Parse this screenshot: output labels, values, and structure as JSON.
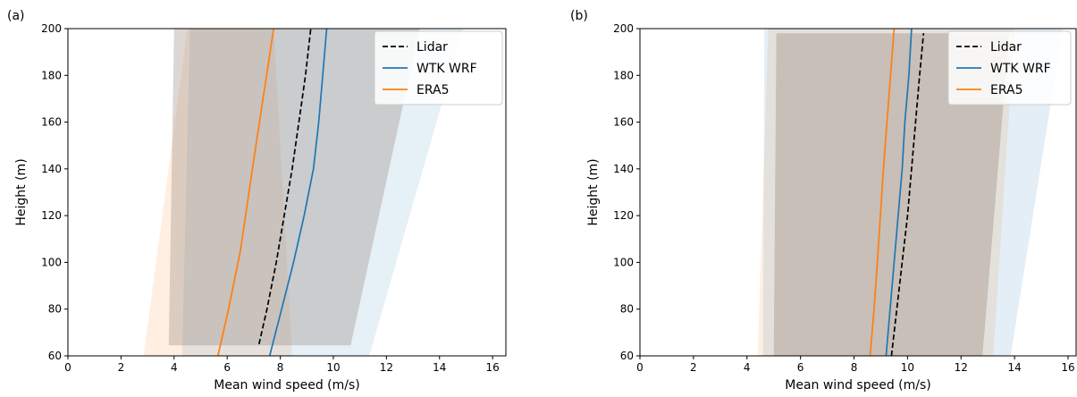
{
  "figure": {
    "panels": [
      {
        "label": "(a)",
        "legend": [
          {
            "text": "Lidar",
            "color": "#000000",
            "dash": true
          },
          {
            "text": "WTK WRF",
            "color": "#1f77b4",
            "dash": false
          },
          {
            "text": "ERA5",
            "color": "#ff7f0e",
            "dash": false
          }
        ]
      },
      {
        "label": "(b)",
        "legend": [
          {
            "text": "Lidar",
            "color": "#000000",
            "dash": true
          },
          {
            "text": "WTK WRF",
            "color": "#1f77b4",
            "dash": false
          },
          {
            "text": "ERA5",
            "color": "#ff7f0e",
            "dash": false
          }
        ]
      }
    ]
  },
  "chart_data": [
    {
      "type": "line",
      "panel": "(a)",
      "xlabel": "Mean wind speed (m/s)",
      "ylabel": "Height (m)",
      "xlim": [
        0,
        16.5
      ],
      "ylim": [
        60,
        200
      ],
      "xticks": [
        0,
        2,
        4,
        6,
        8,
        10,
        12,
        14,
        16
      ],
      "yticks": [
        60,
        80,
        100,
        120,
        140,
        160,
        180,
        200
      ],
      "legend_position": "top-right",
      "grid": false,
      "series": [
        {
          "name": "Lidar",
          "color": "#000000",
          "dashed": true,
          "points": [
            [
              7.2,
              65
            ],
            [
              7.5,
              80
            ],
            [
              7.85,
              100
            ],
            [
              8.15,
              120
            ],
            [
              8.45,
              140
            ],
            [
              8.7,
              160
            ],
            [
              8.95,
              180
            ],
            [
              9.15,
              200
            ]
          ]
        },
        {
          "name": "WTK WRF",
          "color": "#1f77b4",
          "dashed": false,
          "points": [
            [
              7.6,
              60
            ],
            [
              8.05,
              80
            ],
            [
              8.5,
              100
            ],
            [
              8.9,
              120
            ],
            [
              9.25,
              140
            ],
            [
              9.45,
              160
            ],
            [
              9.6,
              180
            ],
            [
              9.75,
              200
            ]
          ]
        },
        {
          "name": "ERA5",
          "color": "#ff7f0e",
          "dashed": false,
          "points": [
            [
              5.65,
              60
            ],
            [
              6.05,
              80
            ],
            [
              6.5,
              105
            ],
            [
              6.95,
              140
            ],
            [
              7.35,
              170
            ],
            [
              7.75,
              200
            ]
          ]
        }
      ],
      "bands": [
        {
          "color": "#ff7f0e",
          "opacity": 0.12,
          "polygon": [
            [
              2.85,
              60
            ],
            [
              4.5,
              200
            ],
            [
              7.75,
              200
            ],
            [
              8.45,
              60
            ]
          ]
        },
        {
          "color": "#1f77b4",
          "opacity": 0.11,
          "polygon": [
            [
              4.3,
              60
            ],
            [
              4.6,
              200
            ],
            [
              14.9,
              200
            ],
            [
              11.35,
              60
            ]
          ]
        },
        {
          "color": "#8c7b70",
          "opacity": 0.3,
          "polygon": [
            [
              3.8,
              64.5
            ],
            [
              4.0,
              200
            ],
            [
              13.25,
              200
            ],
            [
              10.65,
              64.5
            ]
          ]
        }
      ]
    },
    {
      "type": "line",
      "panel": "(b)",
      "xlabel": "Mean wind speed (m/s)",
      "ylabel": "Height (m)",
      "xlim": [
        0,
        16.3
      ],
      "ylim": [
        60,
        200
      ],
      "xticks": [
        0,
        2,
        4,
        6,
        8,
        10,
        12,
        14,
        16
      ],
      "yticks": [
        60,
        80,
        100,
        120,
        140,
        160,
        180,
        200
      ],
      "legend_position": "top-right",
      "grid": false,
      "series": [
        {
          "name": "Lidar",
          "color": "#000000",
          "dashed": true,
          "points": [
            [
              9.4,
              60
            ],
            [
              9.6,
              80
            ],
            [
              9.8,
              100
            ],
            [
              10.0,
              120
            ],
            [
              10.15,
              140
            ],
            [
              10.3,
              160
            ],
            [
              10.45,
              180
            ],
            [
              10.6,
              198
            ]
          ]
        },
        {
          "name": "WTK WRF",
          "color": "#1f77b4",
          "dashed": false,
          "points": [
            [
              9.2,
              60
            ],
            [
              9.35,
              80
            ],
            [
              9.5,
              100
            ],
            [
              9.65,
              120
            ],
            [
              9.8,
              140
            ],
            [
              9.9,
              160
            ],
            [
              10.05,
              180
            ],
            [
              10.15,
              200
            ]
          ]
        },
        {
          "name": "ERA5",
          "color": "#ff7f0e",
          "dashed": false,
          "points": [
            [
              8.6,
              60
            ],
            [
              8.75,
              80
            ],
            [
              8.9,
              105
            ],
            [
              9.1,
              140
            ],
            [
              9.3,
              170
            ],
            [
              9.5,
              200
            ]
          ]
        }
      ],
      "bands": [
        {
          "color": "#ff7f0e",
          "opacity": 0.12,
          "polygon": [
            [
              4.4,
              60
            ],
            [
              4.8,
              200
            ],
            [
              14.0,
              200
            ],
            [
              13.2,
              60
            ]
          ]
        },
        {
          "color": "#1f77b4",
          "opacity": 0.12,
          "polygon": [
            [
              4.6,
              60
            ],
            [
              4.65,
              200
            ],
            [
              15.8,
              200
            ],
            [
              13.85,
              60
            ]
          ]
        },
        {
          "color": "#8c7b70",
          "opacity": 0.33,
          "polygon": [
            [
              5.0,
              60
            ],
            [
              5.1,
              198
            ],
            [
              13.8,
              198
            ],
            [
              12.8,
              60
            ]
          ]
        }
      ]
    }
  ]
}
